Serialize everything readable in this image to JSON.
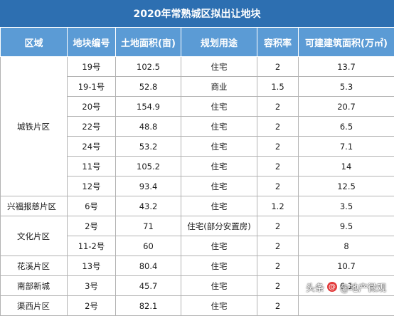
{
  "title": "2020年常熟城区拟出让地块",
  "headers": [
    "区域",
    "地块编号",
    "土地面积(亩)",
    "规划用途",
    "容积率",
    "可建建筑面积(万㎡)"
  ],
  "rows": [
    {
      "region": "城铁片区",
      "id": "19号",
      "area": "102.5",
      "use": "住宅",
      "far": "2",
      "gfa": "13.7"
    },
    {
      "region": "",
      "id": "19-1号",
      "area": "52.8",
      "use": "商业",
      "far": "1.5",
      "gfa": "5.3"
    },
    {
      "region": "",
      "id": "20号",
      "area": "154.9",
      "use": "住宅",
      "far": "2",
      "gfa": "20.7"
    },
    {
      "region": "",
      "id": "22号",
      "area": "48.8",
      "use": "住宅",
      "far": "2",
      "gfa": "6.5"
    },
    {
      "region": "",
      "id": "24号",
      "area": "53.2",
      "use": "住宅",
      "far": "2",
      "gfa": "7.1"
    },
    {
      "region": "",
      "id": "11号",
      "area": "105.2",
      "use": "住宅",
      "far": "2",
      "gfa": "14"
    },
    {
      "region": "",
      "id": "12号",
      "area": "93.4",
      "use": "住宅",
      "far": "2",
      "gfa": "12.5"
    },
    {
      "region": "兴福报慈片区",
      "id": "6号",
      "area": "43.2",
      "use": "住宅",
      "far": "1.2",
      "gfa": "3.5"
    },
    {
      "region": "文化片区",
      "id": "2号",
      "area": "71",
      "use": "住宅(部分安置房)",
      "far": "2",
      "gfa": "9.5"
    },
    {
      "region": "",
      "id": "11-2号",
      "area": "60",
      "use": "住宅",
      "far": "2",
      "gfa": "8"
    },
    {
      "region": "花溪片区",
      "id": "13号",
      "area": "80.4",
      "use": "住宅",
      "far": "2",
      "gfa": "10.7"
    },
    {
      "region": "南部新城",
      "id": "3号",
      "area": "45.7",
      "use": "住宅",
      "far": "2",
      "gfa": "6.1"
    },
    {
      "region": "渠西片区",
      "id": "2号",
      "area": "82.1",
      "use": "住宅",
      "far": "2",
      "gfa": ""
    }
  ],
  "watermark": {
    "prefix": "头条",
    "handle": "@地产微观"
  }
}
